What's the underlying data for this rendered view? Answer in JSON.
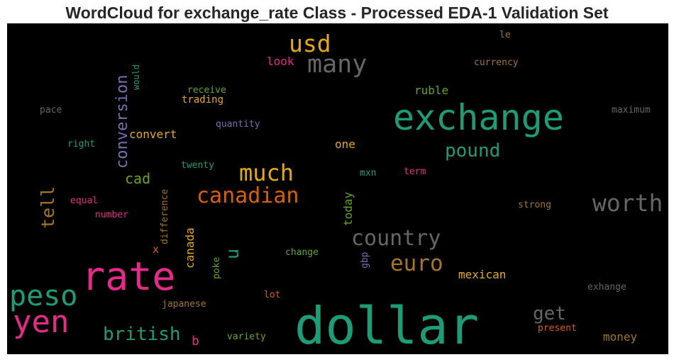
{
  "chart_data": {
    "type": "wordcloud",
    "title": "WordCloud for exchange_rate Class - Processed EDA-1 Validation Set",
    "background": "#000000",
    "colors": {
      "teal": "#1b9e77",
      "orange": "#d95f02",
      "purple": "#7570b3",
      "pink": "#e7298a",
      "green": "#66a61e",
      "yellow": "#e6ab02",
      "brown": "#a6761d",
      "gray": "#666666"
    },
    "words": [
      {
        "text": "dollar",
        "color": "#1b9e77",
        "vertical": false
      },
      {
        "text": "exchange",
        "color": "#1b9e77",
        "vertical": false
      },
      {
        "text": "rate",
        "color": "#e7298a",
        "vertical": false
      },
      {
        "text": "peso",
        "color": "#1b9e77",
        "vertical": false
      },
      {
        "text": "yen",
        "color": "#e7298a",
        "vertical": false
      },
      {
        "text": "many",
        "color": "#666666",
        "vertical": false
      },
      {
        "text": "usd",
        "color": "#e6ab02",
        "vertical": false
      },
      {
        "text": "much",
        "color": "#e6ab02",
        "vertical": false
      },
      {
        "text": "canadian",
        "color": "#d95f02",
        "vertical": false
      },
      {
        "text": "worth",
        "color": "#666666",
        "vertical": false
      },
      {
        "text": "country",
        "color": "#666666",
        "vertical": false
      },
      {
        "text": "euro",
        "color": "#a6761d",
        "vertical": false
      },
      {
        "text": "pound",
        "color": "#1b9e77",
        "vertical": false
      },
      {
        "text": "british",
        "color": "#1b9e77",
        "vertical": false
      },
      {
        "text": "conversion",
        "color": "#7570b3",
        "vertical": true
      },
      {
        "text": "get",
        "color": "#666666",
        "vertical": false
      },
      {
        "text": "tell",
        "color": "#a6761d",
        "vertical": true
      },
      {
        "text": "u",
        "color": "#1b9e77",
        "vertical": true
      },
      {
        "text": "cad",
        "color": "#66a61e",
        "vertical": false
      },
      {
        "text": "convert",
        "color": "#e6ab02",
        "vertical": false
      },
      {
        "text": "mexican",
        "color": "#e6ab02",
        "vertical": false
      },
      {
        "text": "money",
        "color": "#a6761d",
        "vertical": false
      },
      {
        "text": "b",
        "color": "#e7298a",
        "vertical": false
      },
      {
        "text": "look",
        "color": "#e7298a",
        "vertical": false
      },
      {
        "text": "ruble",
        "color": "#66a61e",
        "vertical": false
      },
      {
        "text": "one",
        "color": "#e6ab02",
        "vertical": false
      },
      {
        "text": "canada",
        "color": "#e6ab02",
        "vertical": true
      },
      {
        "text": "today",
        "color": "#66a61e",
        "vertical": true
      },
      {
        "text": "x",
        "color": "#d95f02",
        "vertical": false
      },
      {
        "text": "trading",
        "color": "#e6ab02",
        "vertical": false
      },
      {
        "text": "receive",
        "color": "#66a61e",
        "vertical": false
      },
      {
        "text": "currency",
        "color": "#a6761d",
        "vertical": false
      },
      {
        "text": "maximum",
        "color": "#666666",
        "vertical": false
      },
      {
        "text": "quantity",
        "color": "#7570b3",
        "vertical": false
      },
      {
        "text": "right",
        "color": "#1b9e77",
        "vertical": false
      },
      {
        "text": "pace",
        "color": "#666666",
        "vertical": false
      },
      {
        "text": "would",
        "color": "#1b9e77",
        "vertical": true
      },
      {
        "text": "le",
        "color": "#a6761d",
        "vertical": false
      },
      {
        "text": "twenty",
        "color": "#1b9e77",
        "vertical": false
      },
      {
        "text": "mxn",
        "color": "#1b9e77",
        "vertical": false
      },
      {
        "text": "term",
        "color": "#e7298a",
        "vertical": false
      },
      {
        "text": "equal",
        "color": "#e7298a",
        "vertical": false
      },
      {
        "text": "number",
        "color": "#e7298a",
        "vertical": false
      },
      {
        "text": "difference",
        "color": "#a6761d",
        "vertical": true
      },
      {
        "text": "strong",
        "color": "#a6761d",
        "vertical": false
      },
      {
        "text": "change",
        "color": "#66a61e",
        "vertical": false
      },
      {
        "text": "gbp",
        "color": "#7570b3",
        "vertical": true
      },
      {
        "text": "poke",
        "color": "#66a61e",
        "vertical": true
      },
      {
        "text": "lot",
        "color": "#d95f02",
        "vertical": false
      },
      {
        "text": "exhange",
        "color": "#666666",
        "vertical": false
      },
      {
        "text": "japanese",
        "color": "#a6761d",
        "vertical": false
      },
      {
        "text": "present",
        "color": "#d95f02",
        "vertical": false
      },
      {
        "text": "variety",
        "color": "#66a61e",
        "vertical": false
      }
    ]
  }
}
